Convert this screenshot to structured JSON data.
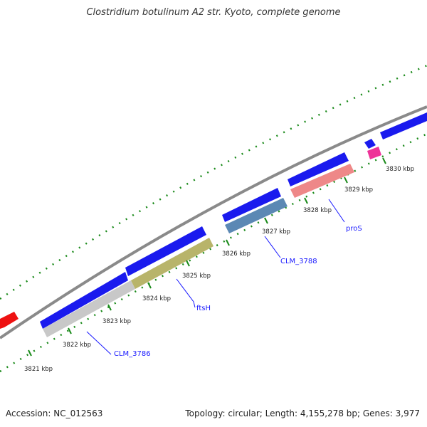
{
  "title": "Clostridium botulinum A2 str. Kyoto, complete genome",
  "accession": "Accession: NC_012563",
  "summary": "Topology: circular; Length: 4,155,278 bp; Genes: 3,977",
  "kbp_ticks": [
    "3821 kbp",
    "3822 kbp",
    "3823 kbp",
    "3824 kbp",
    "3825 kbp",
    "3826 kbp",
    "3827 kbp",
    "3828 kbp",
    "3829 kbp",
    "3830 kbp"
  ],
  "gene_labels": [
    "CLM_3786",
    "ftsH",
    "CLM_3788",
    "proS"
  ],
  "colors": {
    "backbone": "#8a8a8a",
    "cds_forward": "#1a1aee",
    "cds_red": "#ee1111",
    "gene_gray": "#c8c8c8",
    "gene_olive": "#b8b46a",
    "gene_steelblue": "#5b88b4",
    "gene_salmon": "#ee8888",
    "gene_pink": "#ee3399",
    "tick_green": "#1a8a1a",
    "label_blue": "#1a1aff"
  }
}
